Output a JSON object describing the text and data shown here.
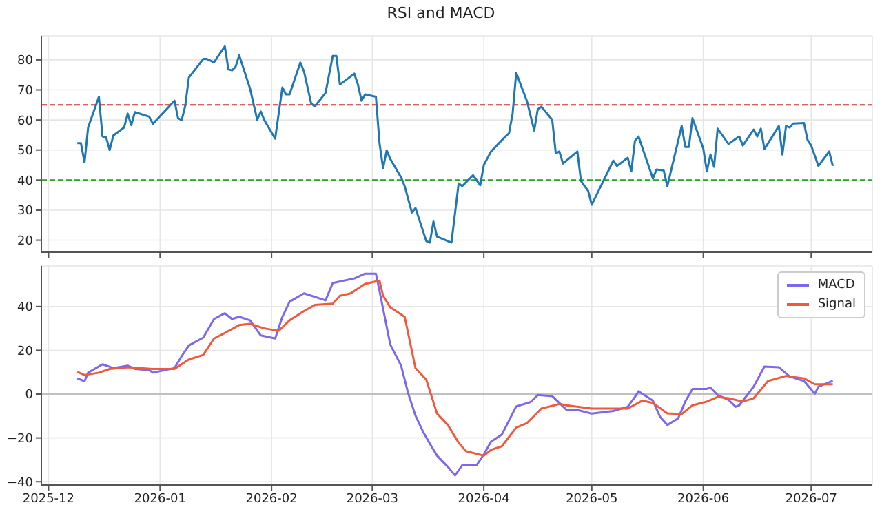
{
  "chart_data": [
    {
      "type": "line",
      "title": "RSI and MACD",
      "xlim": [
        "2025-11-29",
        "2026-07-18"
      ],
      "xticks": [
        "2025-12",
        "2026-01",
        "2026-02",
        "2026-03",
        "2026-04",
        "2026-05",
        "2026-06",
        "2026-07"
      ],
      "ylim": [
        16,
        88
      ],
      "yticks": [
        20,
        30,
        40,
        50,
        60,
        70,
        80
      ],
      "grid": true,
      "tick_labels": "y",
      "ref_lines": [
        {
          "axis": "y",
          "value": 65,
          "color": "#d62728",
          "line_style": "dashed"
        },
        {
          "axis": "y",
          "value": 40,
          "color": "#2ca02c",
          "line_style": "dashed"
        }
      ],
      "series": [
        {
          "color": "#1f77b4",
          "x": [
            "2025-12-09",
            "2025-12-10",
            "2025-12-11",
            "2025-12-12",
            "2025-12-15",
            "2025-12-16",
            "2025-12-17",
            "2025-12-18",
            "2025-12-19",
            "2025-12-22",
            "2025-12-23",
            "2025-12-24",
            "2025-12-25",
            "2025-12-29",
            "2025-12-30",
            "2026-01-05",
            "2026-01-06",
            "2026-01-07",
            "2026-01-08",
            "2026-01-09",
            "2026-01-13",
            "2026-01-14",
            "2026-01-16",
            "2026-01-19",
            "2026-01-20",
            "2026-01-21",
            "2026-01-22",
            "2026-01-23",
            "2026-01-26",
            "2026-01-28",
            "2026-01-29",
            "2026-01-30",
            "2026-02-02",
            "2026-02-04",
            "2026-02-05",
            "2026-02-06",
            "2026-02-09",
            "2026-02-10",
            "2026-02-12",
            "2026-02-13",
            "2026-02-16",
            "2026-02-18",
            "2026-02-19",
            "2026-02-20",
            "2026-02-24",
            "2026-02-25",
            "2026-02-26",
            "2026-02-27",
            "2026-03-02",
            "2026-03-03",
            "2026-03-04",
            "2026-03-05",
            "2026-03-06",
            "2026-03-09",
            "2026-03-10",
            "2026-03-12",
            "2026-03-13",
            "2026-03-16",
            "2026-03-17",
            "2026-03-18",
            "2026-03-19",
            "2026-03-23",
            "2026-03-25",
            "2026-03-26",
            "2026-03-29",
            "2026-03-31",
            "2026-04-01",
            "2026-04-03",
            "2026-04-07",
            "2026-04-08",
            "2026-04-09",
            "2026-04-10",
            "2026-04-13",
            "2026-04-15",
            "2026-04-16",
            "2026-04-17",
            "2026-04-20",
            "2026-04-21",
            "2026-04-22",
            "2026-04-23",
            "2026-04-27",
            "2026-04-28",
            "2026-04-30",
            "2026-05-01",
            "2026-05-07",
            "2026-05-08",
            "2026-05-11",
            "2026-05-12",
            "2026-05-13",
            "2026-05-14",
            "2026-05-18",
            "2026-05-19",
            "2026-05-21",
            "2026-05-22",
            "2026-05-26",
            "2026-05-27",
            "2026-05-28",
            "2026-05-29",
            "2026-06-01",
            "2026-06-02",
            "2026-06-03",
            "2026-06-04",
            "2026-06-05",
            "2026-06-08",
            "2026-06-11",
            "2026-06-12",
            "2026-06-15",
            "2026-06-16",
            "2026-06-17",
            "2026-06-18",
            "2026-06-22",
            "2026-06-23",
            "2026-06-24",
            "2026-06-25",
            "2026-06-26",
            "2026-06-29",
            "2026-06-30",
            "2026-07-01",
            "2026-07-03",
            "2026-07-06",
            "2026-07-07"
          ],
          "values": [
            52.3,
            52.3,
            45.9,
            57.5,
            67.7,
            54.5,
            54.2,
            50,
            54.8,
            57.5,
            62.1,
            58.3,
            62.6,
            61.1,
            58.7,
            66.4,
            60.6,
            59.9,
            64.7,
            74.1,
            80.3,
            80.3,
            79.2,
            84.5,
            76.8,
            76.5,
            77.7,
            81.5,
            70.5,
            60.1,
            62.8,
            59.9,
            53.8,
            70.8,
            68.5,
            68.5,
            79.1,
            76.2,
            65.5,
            64.5,
            69,
            81.3,
            81.3,
            71.8,
            75.4,
            71.8,
            66.4,
            68.5,
            67.7,
            52.3,
            43.9,
            49.9,
            47,
            40.9,
            38,
            29.2,
            30.7,
            19.7,
            19.2,
            26.2,
            21.2,
            19.2,
            38.9,
            38,
            41.6,
            38.3,
            45,
            49.5,
            54.5,
            55.6,
            62.1,
            75.7,
            66.2,
            56.5,
            63.6,
            64.4,
            60.1,
            48.9,
            49.5,
            45.5,
            49.5,
            39.7,
            36.4,
            31.8,
            46.5,
            44.7,
            47.4,
            42.9,
            53,
            54.5,
            40.5,
            43.5,
            43.2,
            37.9,
            58,
            51,
            51,
            60.6,
            50.5,
            42.9,
            48.5,
            44.4,
            57.1,
            52,
            54.5,
            51.5,
            56.8,
            54.5,
            57.1,
            50.3,
            58,
            48.5,
            58,
            57.5,
            58.8,
            59,
            53.3,
            51.5,
            44.7,
            49.5,
            44.7
          ]
        }
      ]
    },
    {
      "type": "line",
      "xlim": [
        "2025-11-29",
        "2026-07-18"
      ],
      "xticks": [
        "2025-12",
        "2026-01",
        "2026-02",
        "2026-03",
        "2026-04",
        "2026-05",
        "2026-06",
        "2026-07"
      ],
      "ylim": [
        -41.5,
        58.5
      ],
      "yticks": [
        -40,
        -20,
        0,
        20,
        40
      ],
      "grid": true,
      "legend": "top right",
      "ref_lines": [
        {
          "axis": "y",
          "value": 0,
          "color": "#c0c0c0",
          "line_style": "solid"
        }
      ],
      "series": [
        {
          "name": "MACD",
          "color": "#7b68ee",
          "x": [
            "2025-12-09",
            "2025-12-11",
            "2025-12-12",
            "2025-12-16",
            "2025-12-19",
            "2025-12-23",
            "2025-12-25",
            "2025-12-29",
            "2025-12-30",
            "2026-01-05",
            "2026-01-07",
            "2026-01-09",
            "2026-01-13",
            "2026-01-16",
            "2026-01-19",
            "2026-01-21",
            "2026-01-23",
            "2026-01-26",
            "2026-01-29",
            "2026-02-02",
            "2026-02-04",
            "2026-02-06",
            "2026-02-10",
            "2026-02-16",
            "2026-02-18",
            "2026-02-24",
            "2026-02-27",
            "2026-03-02",
            "2026-03-03",
            "2026-03-06",
            "2026-03-09",
            "2026-03-11",
            "2026-03-13",
            "2026-03-15",
            "2026-03-17",
            "2026-03-19",
            "2026-03-22",
            "2026-03-24",
            "2026-03-26",
            "2026-03-30",
            "2026-04-01",
            "2026-04-03",
            "2026-04-06",
            "2026-04-10",
            "2026-04-14",
            "2026-04-16",
            "2026-04-20",
            "2026-04-24",
            "2026-04-27",
            "2026-05-01",
            "2026-05-07",
            "2026-05-11",
            "2026-05-13",
            "2026-05-14",
            "2026-05-18",
            "2026-05-20",
            "2026-05-22",
            "2026-05-25",
            "2026-05-27",
            "2026-05-29",
            "2026-06-02",
            "2026-06-03",
            "2026-06-05",
            "2026-06-08",
            "2026-06-10",
            "2026-06-11",
            "2026-06-15",
            "2026-06-18",
            "2026-06-22",
            "2026-06-25",
            "2026-06-29",
            "2026-07-02",
            "2026-07-03",
            "2026-07-07"
          ],
          "values": [
            7.2,
            5.9,
            9.8,
            13.6,
            11.9,
            13,
            11.5,
            10.9,
            9.8,
            11.9,
            17.3,
            22.2,
            25.8,
            34.3,
            36.9,
            34.3,
            35.3,
            33.7,
            26.8,
            25.4,
            35.3,
            42.2,
            46,
            42.8,
            50.7,
            52.8,
            55,
            55,
            47.1,
            22.6,
            13,
            0.2,
            -9.8,
            -16.8,
            -22.6,
            -28.1,
            -33.2,
            -37.1,
            -32.4,
            -32.4,
            -27.5,
            -21.7,
            -18.5,
            -5.6,
            -3.6,
            -0.4,
            -0.9,
            -7.2,
            -7.2,
            -8.9,
            -7.7,
            -5.8,
            -1.3,
            1.3,
            -3,
            -10.4,
            -14.1,
            -11.1,
            -3.4,
            2.4,
            2.4,
            3,
            -0.4,
            -2.6,
            -5.8,
            -5.1,
            3.4,
            12.6,
            12.3,
            8.1,
            6,
            0.2,
            3.4,
            6
          ]
        },
        {
          "name": "Signal",
          "color": "#f05a3c",
          "x": [
            "2025-12-09",
            "2025-12-11",
            "2025-12-15",
            "2025-12-18",
            "2025-12-23",
            "2025-12-30",
            "2026-01-05",
            "2026-01-09",
            "2026-01-13",
            "2026-01-16",
            "2026-01-19",
            "2026-01-23",
            "2026-01-26",
            "2026-01-30",
            "2026-02-03",
            "2026-02-06",
            "2026-02-10",
            "2026-02-13",
            "2026-02-18",
            "2026-02-20",
            "2026-02-23",
            "2026-02-27",
            "2026-03-03",
            "2026-03-04",
            "2026-03-06",
            "2026-03-10",
            "2026-03-13",
            "2026-03-16",
            "2026-03-19",
            "2026-03-22",
            "2026-03-25",
            "2026-03-27",
            "2026-04-01",
            "2026-04-03",
            "2026-04-06",
            "2026-04-10",
            "2026-04-13",
            "2026-04-17",
            "2026-04-22",
            "2026-04-24",
            "2026-05-01",
            "2026-05-11",
            "2026-05-15",
            "2026-05-18",
            "2026-05-22",
            "2026-05-26",
            "2026-05-29",
            "2026-06-02",
            "2026-06-05",
            "2026-06-08",
            "2026-06-12",
            "2026-06-15",
            "2026-06-19",
            "2026-06-24",
            "2026-06-29",
            "2026-07-02",
            "2026-07-07"
          ],
          "values": [
            10.2,
            8.7,
            9.8,
            11.5,
            12.3,
            11.5,
            11.5,
            15.8,
            17.9,
            25.4,
            27.9,
            31.5,
            32.1,
            30,
            28.9,
            33.7,
            37.9,
            40.7,
            41.3,
            44.9,
            46,
            50.3,
            51.8,
            44.9,
            39.6,
            35.3,
            11.9,
            6.6,
            -8.9,
            -14.1,
            -22.2,
            -26,
            -28.1,
            -25.4,
            -23.8,
            -15.3,
            -13.2,
            -6.6,
            -4.5,
            -5.1,
            -6.6,
            -6.6,
            -3,
            -4,
            -8.8,
            -9.1,
            -5.1,
            -3.4,
            -1.3,
            -1.9,
            -3.4,
            -1.9,
            6,
            8.3,
            7.2,
            4.5,
            4.5
          ]
        }
      ]
    }
  ]
}
